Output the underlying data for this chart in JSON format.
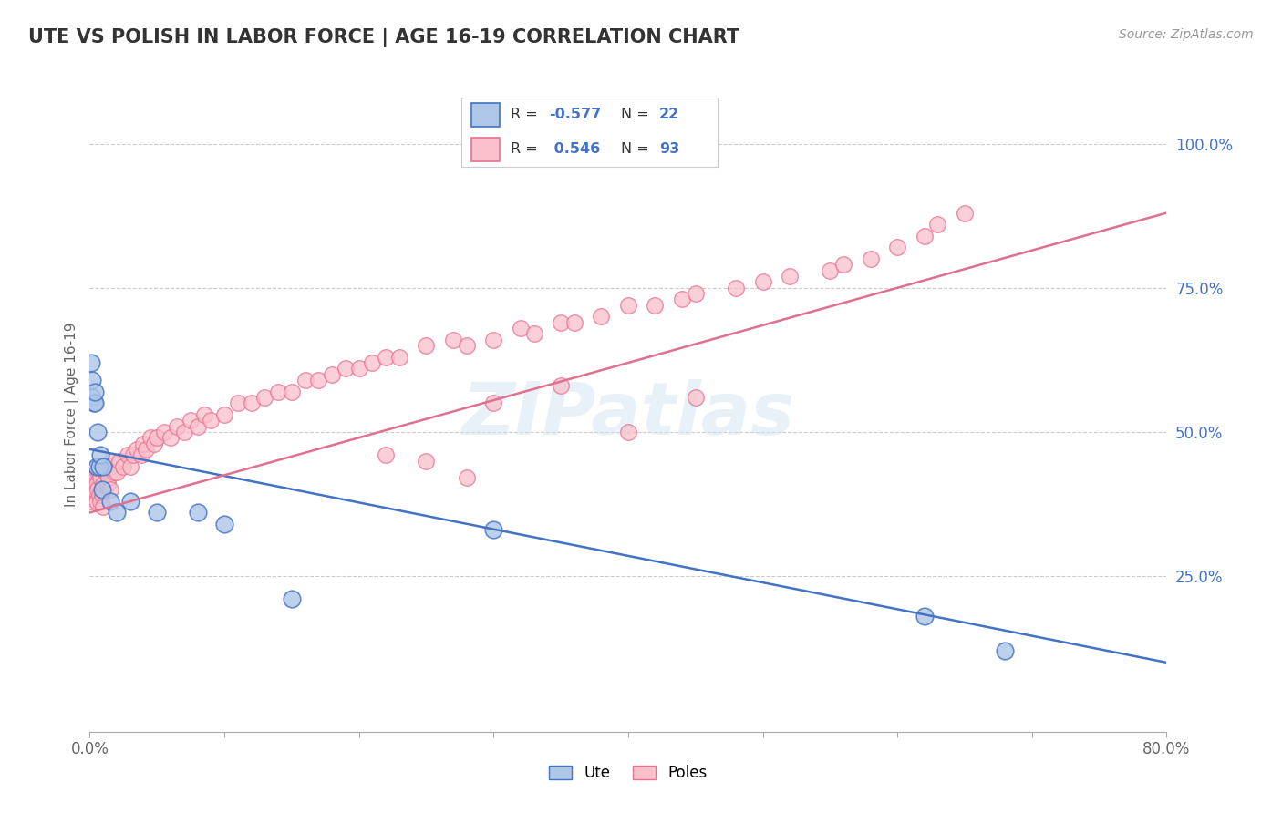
{
  "title": "UTE VS POLISH IN LABOR FORCE | AGE 16-19 CORRELATION CHART",
  "source": "Source: ZipAtlas.com",
  "ylabel": "In Labor Force | Age 16-19",
  "xlim": [
    0.0,
    0.8
  ],
  "ylim": [
    -0.02,
    1.08
  ],
  "xtick_positions": [
    0.0,
    0.1,
    0.2,
    0.3,
    0.4,
    0.5,
    0.6,
    0.7,
    0.8
  ],
  "xticklabels": [
    "0.0%",
    "",
    "",
    "",
    "",
    "",
    "",
    "",
    "80.0%"
  ],
  "ytick_positions": [
    0.25,
    0.5,
    0.75,
    1.0
  ],
  "yticklabels": [
    "25.0%",
    "50.0%",
    "75.0%",
    "100.0%"
  ],
  "ute_fill_color": "#aec6e8",
  "ute_edge_color": "#4472c4",
  "poles_fill_color": "#f9c0cb",
  "poles_edge_color": "#e87090",
  "ute_line_color": "#4472c4",
  "poles_line_color": "#e07090",
  "ute_R": -0.577,
  "ute_N": 22,
  "poles_R": 0.546,
  "poles_N": 93,
  "legend_labels": [
    "Ute",
    "Poles"
  ],
  "watermark": "ZIPatlas",
  "background_color": "#ffffff",
  "grid_color": "#cccccc",
  "ute_x": [
    0.001,
    0.002,
    0.002,
    0.003,
    0.004,
    0.004,
    0.005,
    0.006,
    0.007,
    0.008,
    0.009,
    0.01,
    0.015,
    0.02,
    0.03,
    0.05,
    0.08,
    0.1,
    0.15,
    0.3,
    0.62,
    0.68
  ],
  "ute_y": [
    0.62,
    0.56,
    0.59,
    0.55,
    0.55,
    0.57,
    0.44,
    0.5,
    0.44,
    0.46,
    0.4,
    0.44,
    0.38,
    0.36,
    0.38,
    0.36,
    0.36,
    0.34,
    0.21,
    0.33,
    0.18,
    0.12
  ],
  "poles_x": [
    0.001,
    0.002,
    0.002,
    0.003,
    0.003,
    0.004,
    0.004,
    0.005,
    0.005,
    0.005,
    0.006,
    0.006,
    0.007,
    0.007,
    0.008,
    0.008,
    0.009,
    0.009,
    0.01,
    0.01,
    0.01,
    0.012,
    0.013,
    0.014,
    0.015,
    0.015,
    0.016,
    0.018,
    0.02,
    0.022,
    0.025,
    0.028,
    0.03,
    0.032,
    0.035,
    0.038,
    0.04,
    0.042,
    0.045,
    0.048,
    0.05,
    0.055,
    0.06,
    0.065,
    0.07,
    0.075,
    0.08,
    0.085,
    0.09,
    0.1,
    0.11,
    0.12,
    0.13,
    0.14,
    0.15,
    0.16,
    0.17,
    0.18,
    0.19,
    0.2,
    0.21,
    0.22,
    0.23,
    0.25,
    0.27,
    0.28,
    0.3,
    0.32,
    0.33,
    0.35,
    0.36,
    0.38,
    0.4,
    0.42,
    0.44,
    0.45,
    0.48,
    0.5,
    0.52,
    0.55,
    0.56,
    0.58,
    0.6,
    0.62,
    0.63,
    0.65,
    0.3,
    0.35,
    0.4,
    0.45,
    0.22,
    0.25,
    0.28
  ],
  "poles_y": [
    0.38,
    0.41,
    0.43,
    0.4,
    0.42,
    0.4,
    0.43,
    0.38,
    0.41,
    0.44,
    0.4,
    0.43,
    0.39,
    0.43,
    0.38,
    0.42,
    0.39,
    0.44,
    0.37,
    0.41,
    0.44,
    0.43,
    0.41,
    0.42,
    0.4,
    0.44,
    0.45,
    0.43,
    0.43,
    0.45,
    0.44,
    0.46,
    0.44,
    0.46,
    0.47,
    0.46,
    0.48,
    0.47,
    0.49,
    0.48,
    0.49,
    0.5,
    0.49,
    0.51,
    0.5,
    0.52,
    0.51,
    0.53,
    0.52,
    0.53,
    0.55,
    0.55,
    0.56,
    0.57,
    0.57,
    0.59,
    0.59,
    0.6,
    0.61,
    0.61,
    0.62,
    0.63,
    0.63,
    0.65,
    0.66,
    0.65,
    0.66,
    0.68,
    0.67,
    0.69,
    0.69,
    0.7,
    0.72,
    0.72,
    0.73,
    0.74,
    0.75,
    0.76,
    0.77,
    0.78,
    0.79,
    0.8,
    0.82,
    0.84,
    0.86,
    0.88,
    0.55,
    0.58,
    0.5,
    0.56,
    0.46,
    0.45,
    0.42
  ],
  "ute_trend_x0": 0.0,
  "ute_trend_y0": 0.47,
  "ute_trend_x1": 0.8,
  "ute_trend_y1": 0.1,
  "poles_trend_x0": 0.0,
  "poles_trend_y0": 0.36,
  "poles_trend_x1": 0.8,
  "poles_trend_y1": 0.88
}
